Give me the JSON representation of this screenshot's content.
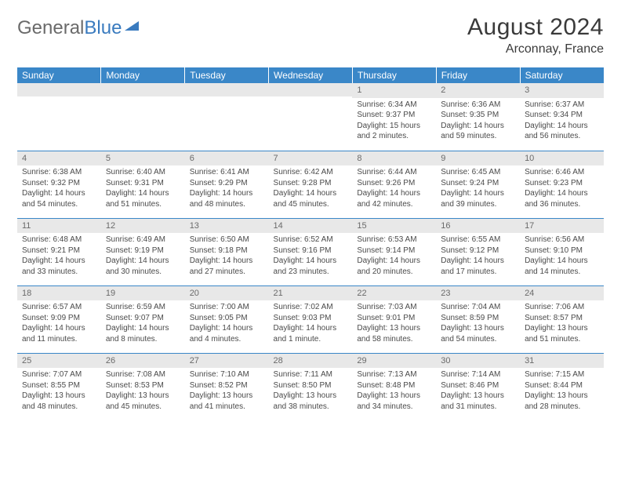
{
  "logo": {
    "text_gray": "General",
    "text_blue": "Blue"
  },
  "title": "August 2024",
  "location": "Arconnay, France",
  "colors": {
    "header_bg": "#3a87c8",
    "header_text": "#ffffff",
    "daynum_bg": "#e8e8e8",
    "cell_border": "#3a87c8",
    "body_text": "#4a4a4a",
    "title_text": "#3a3a3a",
    "logo_gray": "#6a6a6a",
    "logo_blue": "#3a7bbf"
  },
  "day_headers": [
    "Sunday",
    "Monday",
    "Tuesday",
    "Wednesday",
    "Thursday",
    "Friday",
    "Saturday"
  ],
  "weeks": [
    [
      {
        "n": "",
        "sr": "",
        "ss": "",
        "dl": ""
      },
      {
        "n": "",
        "sr": "",
        "ss": "",
        "dl": ""
      },
      {
        "n": "",
        "sr": "",
        "ss": "",
        "dl": ""
      },
      {
        "n": "",
        "sr": "",
        "ss": "",
        "dl": ""
      },
      {
        "n": "1",
        "sr": "Sunrise: 6:34 AM",
        "ss": "Sunset: 9:37 PM",
        "dl": "Daylight: 15 hours and 2 minutes."
      },
      {
        "n": "2",
        "sr": "Sunrise: 6:36 AM",
        "ss": "Sunset: 9:35 PM",
        "dl": "Daylight: 14 hours and 59 minutes."
      },
      {
        "n": "3",
        "sr": "Sunrise: 6:37 AM",
        "ss": "Sunset: 9:34 PM",
        "dl": "Daylight: 14 hours and 56 minutes."
      }
    ],
    [
      {
        "n": "4",
        "sr": "Sunrise: 6:38 AM",
        "ss": "Sunset: 9:32 PM",
        "dl": "Daylight: 14 hours and 54 minutes."
      },
      {
        "n": "5",
        "sr": "Sunrise: 6:40 AM",
        "ss": "Sunset: 9:31 PM",
        "dl": "Daylight: 14 hours and 51 minutes."
      },
      {
        "n": "6",
        "sr": "Sunrise: 6:41 AM",
        "ss": "Sunset: 9:29 PM",
        "dl": "Daylight: 14 hours and 48 minutes."
      },
      {
        "n": "7",
        "sr": "Sunrise: 6:42 AM",
        "ss": "Sunset: 9:28 PM",
        "dl": "Daylight: 14 hours and 45 minutes."
      },
      {
        "n": "8",
        "sr": "Sunrise: 6:44 AM",
        "ss": "Sunset: 9:26 PM",
        "dl": "Daylight: 14 hours and 42 minutes."
      },
      {
        "n": "9",
        "sr": "Sunrise: 6:45 AM",
        "ss": "Sunset: 9:24 PM",
        "dl": "Daylight: 14 hours and 39 minutes."
      },
      {
        "n": "10",
        "sr": "Sunrise: 6:46 AM",
        "ss": "Sunset: 9:23 PM",
        "dl": "Daylight: 14 hours and 36 minutes."
      }
    ],
    [
      {
        "n": "11",
        "sr": "Sunrise: 6:48 AM",
        "ss": "Sunset: 9:21 PM",
        "dl": "Daylight: 14 hours and 33 minutes."
      },
      {
        "n": "12",
        "sr": "Sunrise: 6:49 AM",
        "ss": "Sunset: 9:19 PM",
        "dl": "Daylight: 14 hours and 30 minutes."
      },
      {
        "n": "13",
        "sr": "Sunrise: 6:50 AM",
        "ss": "Sunset: 9:18 PM",
        "dl": "Daylight: 14 hours and 27 minutes."
      },
      {
        "n": "14",
        "sr": "Sunrise: 6:52 AM",
        "ss": "Sunset: 9:16 PM",
        "dl": "Daylight: 14 hours and 23 minutes."
      },
      {
        "n": "15",
        "sr": "Sunrise: 6:53 AM",
        "ss": "Sunset: 9:14 PM",
        "dl": "Daylight: 14 hours and 20 minutes."
      },
      {
        "n": "16",
        "sr": "Sunrise: 6:55 AM",
        "ss": "Sunset: 9:12 PM",
        "dl": "Daylight: 14 hours and 17 minutes."
      },
      {
        "n": "17",
        "sr": "Sunrise: 6:56 AM",
        "ss": "Sunset: 9:10 PM",
        "dl": "Daylight: 14 hours and 14 minutes."
      }
    ],
    [
      {
        "n": "18",
        "sr": "Sunrise: 6:57 AM",
        "ss": "Sunset: 9:09 PM",
        "dl": "Daylight: 14 hours and 11 minutes."
      },
      {
        "n": "19",
        "sr": "Sunrise: 6:59 AM",
        "ss": "Sunset: 9:07 PM",
        "dl": "Daylight: 14 hours and 8 minutes."
      },
      {
        "n": "20",
        "sr": "Sunrise: 7:00 AM",
        "ss": "Sunset: 9:05 PM",
        "dl": "Daylight: 14 hours and 4 minutes."
      },
      {
        "n": "21",
        "sr": "Sunrise: 7:02 AM",
        "ss": "Sunset: 9:03 PM",
        "dl": "Daylight: 14 hours and 1 minute."
      },
      {
        "n": "22",
        "sr": "Sunrise: 7:03 AM",
        "ss": "Sunset: 9:01 PM",
        "dl": "Daylight: 13 hours and 58 minutes."
      },
      {
        "n": "23",
        "sr": "Sunrise: 7:04 AM",
        "ss": "Sunset: 8:59 PM",
        "dl": "Daylight: 13 hours and 54 minutes."
      },
      {
        "n": "24",
        "sr": "Sunrise: 7:06 AM",
        "ss": "Sunset: 8:57 PM",
        "dl": "Daylight: 13 hours and 51 minutes."
      }
    ],
    [
      {
        "n": "25",
        "sr": "Sunrise: 7:07 AM",
        "ss": "Sunset: 8:55 PM",
        "dl": "Daylight: 13 hours and 48 minutes."
      },
      {
        "n": "26",
        "sr": "Sunrise: 7:08 AM",
        "ss": "Sunset: 8:53 PM",
        "dl": "Daylight: 13 hours and 45 minutes."
      },
      {
        "n": "27",
        "sr": "Sunrise: 7:10 AM",
        "ss": "Sunset: 8:52 PM",
        "dl": "Daylight: 13 hours and 41 minutes."
      },
      {
        "n": "28",
        "sr": "Sunrise: 7:11 AM",
        "ss": "Sunset: 8:50 PM",
        "dl": "Daylight: 13 hours and 38 minutes."
      },
      {
        "n": "29",
        "sr": "Sunrise: 7:13 AM",
        "ss": "Sunset: 8:48 PM",
        "dl": "Daylight: 13 hours and 34 minutes."
      },
      {
        "n": "30",
        "sr": "Sunrise: 7:14 AM",
        "ss": "Sunset: 8:46 PM",
        "dl": "Daylight: 13 hours and 31 minutes."
      },
      {
        "n": "31",
        "sr": "Sunrise: 7:15 AM",
        "ss": "Sunset: 8:44 PM",
        "dl": "Daylight: 13 hours and 28 minutes."
      }
    ]
  ]
}
